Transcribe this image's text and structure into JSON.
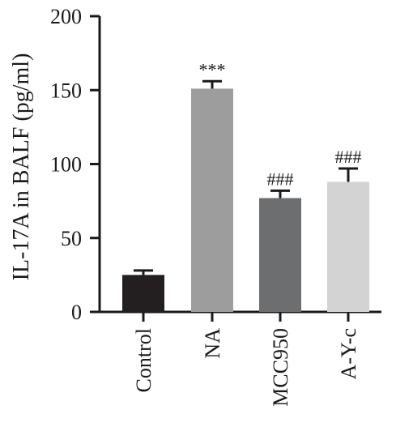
{
  "chart_data": {
    "type": "bar",
    "title": "",
    "ylabel": "IL-17A in BALF (pg/ml)",
    "xlabel": "",
    "ylim": [
      0,
      200
    ],
    "yticks": [
      0,
      50,
      100,
      150,
      200
    ],
    "categories": [
      "Control",
      "NA",
      "MCC950",
      "A-Y-c"
    ],
    "values": [
      25,
      151,
      77,
      88
    ],
    "errors": [
      3,
      5,
      5,
      9
    ],
    "annotations": [
      "",
      "***",
      "###",
      "###"
    ],
    "colors": [
      "#231f20",
      "#9d9d9d",
      "#6d6e70",
      "#d3d3d3"
    ],
    "grid": false
  }
}
